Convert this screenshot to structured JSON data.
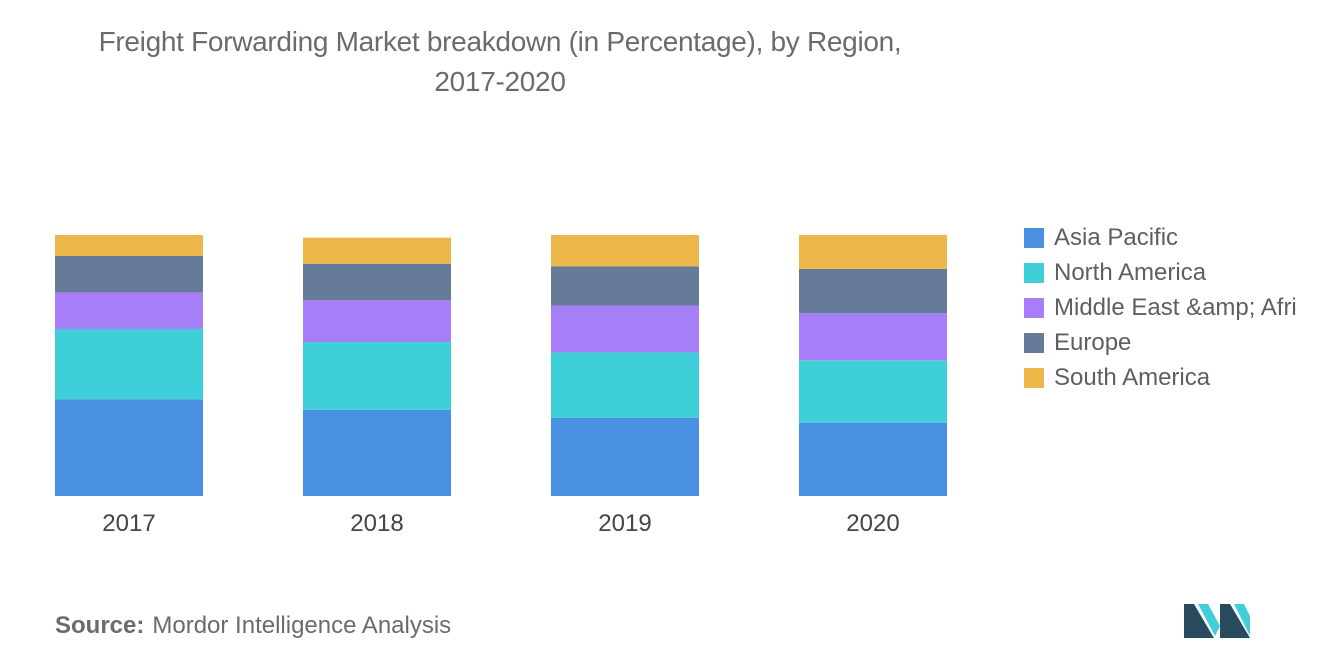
{
  "title_line1": "Freight Forwarding Market breakdown (in Percentage), by Region,",
  "title_line2": "2017-2020",
  "source_label": "Source:",
  "source_text": "Mordor Intelligence Analysis",
  "logo_icon": "mordor-intelligence-logo",
  "chart_data": {
    "type": "bar",
    "stacked": true,
    "title": "Freight Forwarding Market breakdown (in Percentage), by Region, 2017-2020",
    "xlabel": "",
    "ylabel": "",
    "ylim": [
      0,
      100
    ],
    "grid": false,
    "legend_position": "right",
    "categories": [
      "2017",
      "2018",
      "2019",
      "2020"
    ],
    "series": [
      {
        "name": "Asia Pacific",
        "color": "#4a90e2",
        "values": [
          37,
          33,
          30,
          28
        ]
      },
      {
        "name": "North America",
        "color": "#3ecfd8",
        "values": [
          27,
          26,
          25,
          24
        ]
      },
      {
        "name": "Middle East &amp; Afri",
        "color": "#a67ff8",
        "values": [
          14,
          16,
          18,
          18
        ]
      },
      {
        "name": "Europe",
        "color": "#667a99",
        "values": [
          14,
          14,
          15,
          17
        ]
      },
      {
        "name": "South America",
        "color": "#ecb84a",
        "values": [
          8,
          10,
          12,
          13
        ]
      }
    ]
  }
}
